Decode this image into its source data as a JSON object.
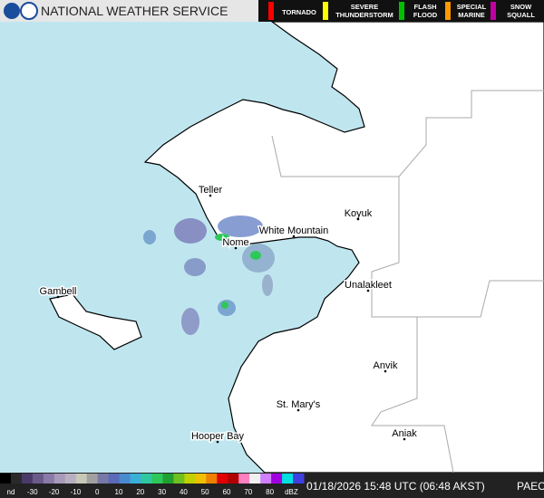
{
  "header": {
    "title": "NATIONAL WEATHER SERVICE",
    "warnings": [
      {
        "lines": [
          "TORNADO"
        ],
        "color": "#ff0000"
      },
      {
        "lines": [
          "SEVERE",
          "THUNDERSTORM"
        ],
        "color": "#ffff00"
      },
      {
        "lines": [
          "FLASH",
          "FLOOD"
        ],
        "color": "#00c000"
      },
      {
        "lines": [
          "SPECIAL",
          "MARINE"
        ],
        "color": "#ff9900"
      },
      {
        "lines": [
          "SNOW",
          "SQUALL"
        ],
        "color": "#c000a0"
      }
    ]
  },
  "places": [
    {
      "label": "Teller"
    },
    {
      "label": "Koyuk"
    },
    {
      "label": "White Mountain"
    },
    {
      "label": "Nome"
    },
    {
      "label": "Unalakleet"
    },
    {
      "label": "Gambell"
    },
    {
      "label": "Anvik"
    },
    {
      "label": "St. Mary's"
    },
    {
      "label": "Hooper Bay"
    },
    {
      "label": "Aniak"
    }
  ],
  "scale": {
    "labels": [
      "nd",
      "-30",
      "-20",
      "-10",
      "0",
      "10",
      "20",
      "30",
      "40",
      "50",
      "60",
      "70",
      "80",
      "dBZ"
    ]
  },
  "footer": {
    "timestamp": "01/18/2026 15:48 UTC (06:48 AKST)",
    "station": "PAEC"
  }
}
